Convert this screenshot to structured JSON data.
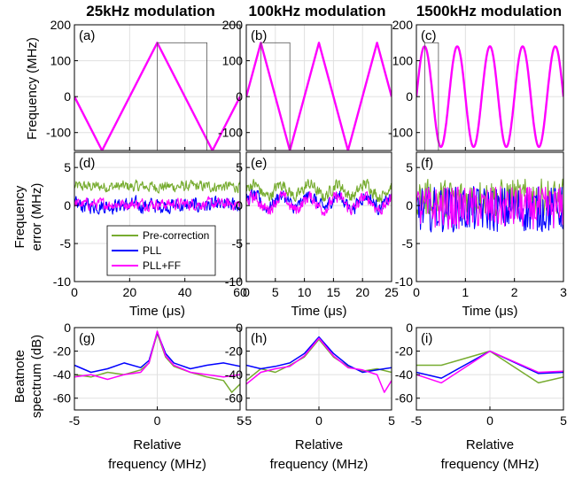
{
  "colors": {
    "pre": "#77AC30",
    "pll": "#0000FF",
    "ff": "#FF00FF",
    "grid": "#e0e0e0"
  },
  "legend": [
    "Pre-correction",
    "PLL",
    "PLL+FF"
  ],
  "columns": [
    {
      "title": "25kHz modulation",
      "xlim": [
        0,
        60
      ],
      "xticks": [
        "0",
        "20",
        "40",
        "60"
      ],
      "xtickvals": [
        0,
        20,
        40,
        60
      ]
    },
    {
      "title": "100kHz modulation",
      "xlim": [
        0,
        25
      ],
      "xticks": [
        "0",
        "5",
        "10",
        "15",
        "20",
        "25"
      ],
      "xtickvals": [
        0,
        5,
        10,
        15,
        20,
        25
      ]
    },
    {
      "title": "1500kHz modulation",
      "xlim": [
        0,
        3
      ],
      "xticks": [
        "0",
        "1",
        "2",
        "3"
      ],
      "xtickvals": [
        0,
        1,
        2,
        3
      ]
    }
  ],
  "rows": {
    "freq": {
      "ylabel1": "Frequency (MHz)",
      "ylim": [
        -150,
        200
      ],
      "yticks": [
        "200",
        "100",
        "0",
        "-100"
      ],
      "ytickvals": [
        200,
        100,
        0,
        -100
      ]
    },
    "err": {
      "ylabel1": "Frequency",
      "ylabel2": "error (MHz)",
      "ylim": [
        -10,
        7
      ],
      "yticks": [
        "5",
        "0",
        "-5",
        "-10"
      ],
      "ytickvals": [
        5,
        0,
        -5,
        -10
      ],
      "xlabel": "Time (μs)"
    },
    "spec": {
      "ylabel1": "Beatnote",
      "ylabel2": "spectrum (dB)",
      "ylim": [
        -70,
        0
      ],
      "yticks": [
        "0",
        "-20",
        "-40",
        "-60"
      ],
      "ytickvals": [
        0,
        -20,
        -40,
        -60
      ],
      "xlim": [
        -5,
        5
      ],
      "xticks": [
        "-5",
        "0",
        "5"
      ],
      "xtickvals": [
        -5,
        0,
        5
      ],
      "xlabel1": "Relative",
      "xlabel2": "frequency (MHz)"
    }
  },
  "panel_labels": [
    "(a)",
    "(b)",
    "(c)",
    "(d)",
    "(e)",
    "(f)",
    "(g)",
    "(h)",
    "(i)"
  ],
  "chart_data": [
    {
      "type": "line",
      "panel": "(a)",
      "title": "25kHz modulation",
      "ylabel": "Frequency (MHz)",
      "xlim": [
        0,
        60
      ],
      "ylim": [
        -150,
        200
      ],
      "series": [
        {
          "name": "PLL+FF",
          "x": [
            0,
            10,
            30,
            50,
            60
          ],
          "y": [
            0,
            -150,
            150,
            -150,
            0
          ]
        }
      ],
      "annotation_box": {
        "x": [
          30,
          48
        ],
        "y": [
          -150,
          150
        ]
      }
    },
    {
      "type": "line",
      "panel": "(b)",
      "title": "100kHz modulation",
      "xlim": [
        0,
        25
      ],
      "ylim": [
        -150,
        200
      ],
      "series": [
        {
          "name": "PLL+FF",
          "x": [
            0,
            2.5,
            7.5,
            12.5,
            17.5,
            22.5,
            25
          ],
          "y": [
            0,
            150,
            -150,
            150,
            -150,
            150,
            0
          ]
        }
      ],
      "annotation_box": {
        "x": [
          2.5,
          7.5
        ],
        "y": [
          -150,
          150
        ]
      }
    },
    {
      "type": "line",
      "panel": "(c)",
      "title": "1500kHz modulation",
      "xlim": [
        0,
        3
      ],
      "ylim": [
        -150,
        200
      ],
      "series": [
        {
          "name": "PLL+FF",
          "amplitude": 140,
          "period": 0.6667,
          "x_start": 0,
          "x_end": 3
        }
      ],
      "annotation_box": {
        "x": [
          0.17,
          0.45
        ],
        "y": [
          -150,
          150
        ]
      }
    },
    {
      "type": "line",
      "panel": "(d)",
      "xlabel": "Time (μs)",
      "ylabel": "Frequency error (MHz)",
      "xlim": [
        0,
        60
      ],
      "ylim": [
        -10,
        7
      ],
      "series": [
        {
          "name": "Pre-correction",
          "mean": 2.5,
          "noise": 1.2
        },
        {
          "name": "PLL",
          "mean": 0.0,
          "noise": 1.6
        },
        {
          "name": "PLL+FF",
          "mean": 0.2,
          "noise": 1.2
        }
      ]
    },
    {
      "type": "line",
      "panel": "(e)",
      "xlabel": "Time (μs)",
      "xlim": [
        0,
        25
      ],
      "ylim": [
        -10,
        7
      ],
      "series": [
        {
          "name": "Pre-correction",
          "mean": 2.0,
          "noise": 1.3
        },
        {
          "name": "PLL",
          "mean": 0.5,
          "noise": 1.4
        },
        {
          "name": "PLL+FF",
          "mean": 0.3,
          "noise": 1.3
        }
      ]
    },
    {
      "type": "line",
      "panel": "(f)",
      "xlabel": "Time (μs)",
      "xlim": [
        0,
        3
      ],
      "ylim": [
        -10,
        7
      ],
      "series": [
        {
          "name": "Pre-correction",
          "mean": 1.0,
          "noise": 2.5
        },
        {
          "name": "PLL",
          "mean": -0.5,
          "noise": 3.0
        },
        {
          "name": "PLL+FF",
          "mean": -0.3,
          "noise": 2.8
        }
      ]
    },
    {
      "type": "line",
      "panel": "(g)",
      "xlabel": "Relative frequency (MHz)",
      "ylabel": "Beatnote spectrum (dB)",
      "xlim": [
        -5,
        5
      ],
      "ylim": [
        -70,
        0
      ],
      "series": [
        {
          "name": "Pre-correction",
          "x": [
            -5,
            -4,
            -3,
            -2,
            -1,
            -0.5,
            0,
            0.5,
            1,
            2,
            3,
            4,
            4.5,
            5
          ],
          "y": [
            -40,
            -42,
            -38,
            -40,
            -36,
            -30,
            -5,
            -25,
            -33,
            -38,
            -42,
            -45,
            -55,
            -48
          ]
        },
        {
          "name": "PLL",
          "x": [
            -5,
            -4,
            -3,
            -2,
            -1,
            -0.5,
            0,
            0.5,
            1,
            2,
            3,
            4,
            5
          ],
          "y": [
            -32,
            -38,
            -35,
            -30,
            -34,
            -28,
            -4,
            -22,
            -30,
            -35,
            -32,
            -30,
            -33
          ]
        },
        {
          "name": "PLL+FF",
          "x": [
            -5,
            -4,
            -3,
            -2,
            -1,
            -0.5,
            0,
            0.5,
            1,
            2,
            3,
            4,
            5
          ],
          "y": [
            -42,
            -40,
            -44,
            -40,
            -38,
            -30,
            -3,
            -24,
            -32,
            -38,
            -40,
            -42,
            -40
          ]
        }
      ]
    },
    {
      "type": "line",
      "panel": "(h)",
      "xlabel": "Relative frequency (MHz)",
      "xlim": [
        -5,
        5
      ],
      "ylim": [
        -70,
        0
      ],
      "series": [
        {
          "name": "Pre-correction",
          "x": [
            -5,
            -4,
            -3,
            -2,
            -1,
            0,
            1,
            2,
            3,
            4,
            5
          ],
          "y": [
            -45,
            -35,
            -38,
            -32,
            -25,
            -10,
            -25,
            -33,
            -37,
            -35,
            -38
          ]
        },
        {
          "name": "PLL",
          "x": [
            -5,
            -4,
            -3,
            -2,
            -1,
            0,
            1,
            2,
            3,
            4,
            5
          ],
          "y": [
            -32,
            -35,
            -33,
            -30,
            -22,
            -8,
            -22,
            -32,
            -38,
            -36,
            -34
          ]
        },
        {
          "name": "PLL+FF",
          "x": [
            -5,
            -4,
            -3,
            -2,
            -1,
            0,
            1,
            2,
            3,
            4,
            4.5,
            5
          ],
          "y": [
            -48,
            -38,
            -35,
            -33,
            -24,
            -9,
            -24,
            -34,
            -36,
            -40,
            -55,
            -45
          ]
        }
      ]
    },
    {
      "type": "line",
      "panel": "(i)",
      "xlabel": "Relative frequency (MHz)",
      "xlim": [
        -5,
        5
      ],
      "ylim": [
        -70,
        0
      ],
      "series": [
        {
          "name": "Pre-correction",
          "x": [
            -5,
            -3.3,
            0,
            3.3,
            5
          ],
          "y": [
            -32,
            -32,
            -20,
            -47,
            -42
          ]
        },
        {
          "name": "PLL",
          "x": [
            -5,
            -3.3,
            0,
            3.3,
            5
          ],
          "y": [
            -38,
            -43,
            -20,
            -39,
            -38
          ]
        },
        {
          "name": "PLL+FF",
          "x": [
            -5,
            -3.3,
            0,
            3.3,
            5
          ],
          "y": [
            -40,
            -47,
            -20,
            -38,
            -37
          ]
        }
      ]
    }
  ]
}
